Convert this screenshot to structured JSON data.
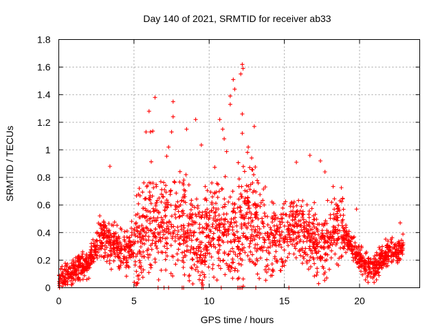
{
  "chart_data": {
    "type": "scatter",
    "title": "Day 140 of 2021, SRMTID for receiver ab33",
    "xlabel": "GPS time / hours",
    "ylabel": "SRMTID / TECUs",
    "xlim": [
      0,
      24
    ],
    "ylim": [
      0,
      1.8
    ],
    "xticks": [
      "0",
      "5",
      "10",
      "15",
      "20"
    ],
    "yticks": [
      "0",
      "0.2",
      "0.4",
      "0.6",
      "0.8",
      "1",
      "1.2",
      "1.4",
      "1.6",
      "1.8"
    ],
    "grid": true,
    "marker": "+",
    "color": "#ff0000",
    "x_extent": [
      0,
      22.9
    ],
    "envelope": [
      {
        "x": 0.0,
        "y": 0.05
      },
      {
        "x": 0.5,
        "y": 0.09
      },
      {
        "x": 1.0,
        "y": 0.12
      },
      {
        "x": 1.5,
        "y": 0.15
      },
      {
        "x": 2.0,
        "y": 0.18
      },
      {
        "x": 2.5,
        "y": 0.3
      },
      {
        "x": 3.0,
        "y": 0.38
      },
      {
        "x": 3.5,
        "y": 0.33
      },
      {
        "x": 4.0,
        "y": 0.27
      },
      {
        "x": 4.5,
        "y": 0.25
      },
      {
        "x": 5.0,
        "y": 0.3
      },
      {
        "x": 5.5,
        "y": 0.4
      },
      {
        "x": 6.0,
        "y": 0.48
      },
      {
        "x": 6.5,
        "y": 0.45
      },
      {
        "x": 7.0,
        "y": 0.4
      },
      {
        "x": 7.5,
        "y": 0.45
      },
      {
        "x": 8.0,
        "y": 0.52
      },
      {
        "x": 8.5,
        "y": 0.45
      },
      {
        "x": 9.0,
        "y": 0.35
      },
      {
        "x": 9.5,
        "y": 0.3
      },
      {
        "x": 10.0,
        "y": 0.42
      },
      {
        "x": 10.5,
        "y": 0.48
      },
      {
        "x": 11.0,
        "y": 0.45
      },
      {
        "x": 11.5,
        "y": 0.35
      },
      {
        "x": 12.0,
        "y": 0.4
      },
      {
        "x": 12.5,
        "y": 0.48
      },
      {
        "x": 13.0,
        "y": 0.45
      },
      {
        "x": 13.5,
        "y": 0.4
      },
      {
        "x": 14.0,
        "y": 0.38
      },
      {
        "x": 14.5,
        "y": 0.33
      },
      {
        "x": 15.0,
        "y": 0.38
      },
      {
        "x": 15.5,
        "y": 0.45
      },
      {
        "x": 16.0,
        "y": 0.42
      },
      {
        "x": 16.5,
        "y": 0.38
      },
      {
        "x": 17.0,
        "y": 0.32
      },
      {
        "x": 17.5,
        "y": 0.3
      },
      {
        "x": 18.0,
        "y": 0.38
      },
      {
        "x": 18.5,
        "y": 0.45
      },
      {
        "x": 19.0,
        "y": 0.38
      },
      {
        "x": 19.5,
        "y": 0.3
      },
      {
        "x": 20.0,
        "y": 0.2
      },
      {
        "x": 20.5,
        "y": 0.16
      },
      {
        "x": 21.0,
        "y": 0.13
      },
      {
        "x": 21.5,
        "y": 0.2
      },
      {
        "x": 22.0,
        "y": 0.27
      },
      {
        "x": 22.5,
        "y": 0.25
      },
      {
        "x": 22.9,
        "y": 0.28
      }
    ],
    "notable_points": [
      {
        "x": 12.2,
        "y": 1.62
      },
      {
        "x": 12.25,
        "y": 1.59
      },
      {
        "x": 12.1,
        "y": 1.55
      },
      {
        "x": 11.6,
        "y": 1.51
      },
      {
        "x": 11.7,
        "y": 1.44
      },
      {
        "x": 11.4,
        "y": 1.39
      },
      {
        "x": 6.4,
        "y": 1.38
      },
      {
        "x": 11.4,
        "y": 1.33
      },
      {
        "x": 7.6,
        "y": 1.35
      },
      {
        "x": 6.0,
        "y": 1.28
      },
      {
        "x": 7.6,
        "y": 1.24
      },
      {
        "x": 9.1,
        "y": 1.22
      },
      {
        "x": 10.7,
        "y": 1.22
      },
      {
        "x": 12.2,
        "y": 1.26
      },
      {
        "x": 13.0,
        "y": 1.17
      },
      {
        "x": 5.8,
        "y": 1.13
      },
      {
        "x": 6.1,
        "y": 1.13
      },
      {
        "x": 7.5,
        "y": 1.13
      },
      {
        "x": 8.5,
        "y": 1.15
      },
      {
        "x": 10.9,
        "y": 1.15
      },
      {
        "x": 12.2,
        "y": 1.12
      },
      {
        "x": 11.0,
        "y": 1.08
      },
      {
        "x": 7.3,
        "y": 1.02
      },
      {
        "x": 12.6,
        "y": 1.02
      },
      {
        "x": 16.7,
        "y": 0.96
      },
      {
        "x": 17.4,
        "y": 0.92
      },
      {
        "x": 15.8,
        "y": 0.91
      },
      {
        "x": 3.4,
        "y": 0.88
      },
      {
        "x": 17.7,
        "y": 0.84
      },
      {
        "x": 18.7,
        "y": 0.63
      },
      {
        "x": 19.8,
        "y": 0.57
      },
      {
        "x": 22.7,
        "y": 0.47
      }
    ],
    "near_zero_x": [
      0.05,
      6.6,
      7.0,
      7.3,
      8.2,
      8.3,
      9.5,
      9.6,
      10.8,
      11.9,
      12.0,
      12.1,
      12.2,
      13.1,
      15.3
    ]
  }
}
